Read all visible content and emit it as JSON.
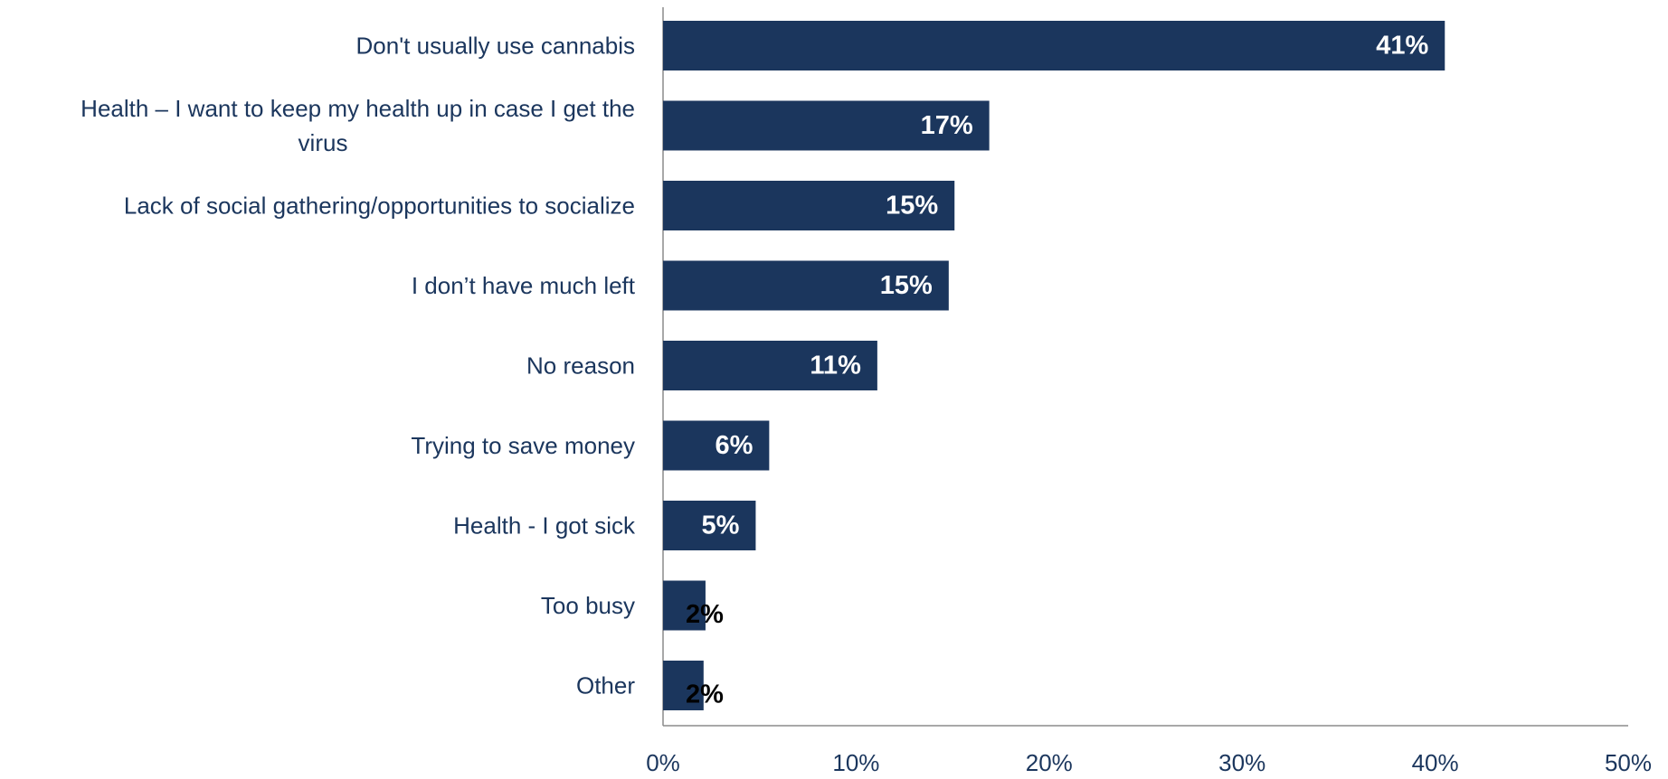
{
  "chart_data": {
    "type": "bar",
    "orientation": "horizontal",
    "categories": [
      "Don't usually use cannabis",
      "Health – I want to keep my health up in case I get the virus",
      "Lack of social gathering/opportunities to socialize",
      "I don’t have much left",
      "No reason",
      "Trying to save money",
      "Health - I got sick",
      "Too busy",
      "Other"
    ],
    "category_lines": [
      [
        "Don't usually use cannabis"
      ],
      [
        "Health – I want to keep my health up in case I get the",
        "virus"
      ],
      [
        "Lack of social gathering/opportunities to socialize"
      ],
      [
        "I don’t have much left"
      ],
      [
        "No reason"
      ],
      [
        "Trying to save money"
      ],
      [
        "Health - I got sick"
      ],
      [
        "Too busy"
      ],
      [
        "Other"
      ]
    ],
    "values": [
      40.5,
      16.9,
      15.1,
      14.8,
      11.1,
      5.5,
      4.8,
      2.2,
      2.1
    ],
    "data_labels": [
      "41%",
      "17%",
      "15%",
      "15%",
      "11%",
      "6%",
      "5%",
      "2%",
      "2%"
    ],
    "xlim": [
      0,
      50
    ],
    "x_ticks": [
      0,
      10,
      20,
      30,
      40,
      50
    ],
    "x_tick_labels": [
      "0%",
      "10%",
      "20%",
      "30%",
      "40%",
      "50%"
    ],
    "title": "",
    "xlabel": "",
    "ylabel": "",
    "grid": false,
    "legend": "none",
    "colors": {
      "bar": "#1b365d",
      "category_text": "#1b365d",
      "tick_text": "#1b365d",
      "axis": "#8c8c8c",
      "label_inside": "#ffffff",
      "label_outside": "#000000"
    }
  }
}
